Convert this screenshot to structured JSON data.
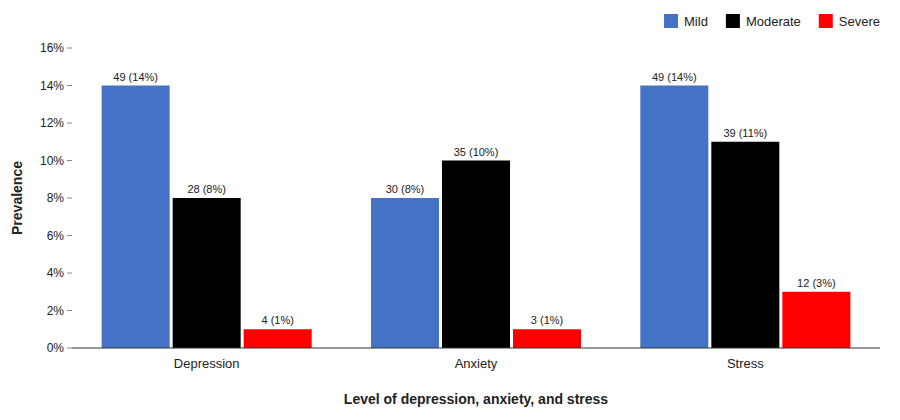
{
  "chart_data": {
    "type": "bar",
    "categories": [
      "Depression",
      "Anxiety",
      "Stress"
    ],
    "series": [
      {
        "name": "Mild",
        "color": "#4472C4",
        "values": [
          14,
          8,
          14
        ],
        "value_labels": [
          "49 (14%)",
          "30 (8%)",
          "49 (14%)"
        ]
      },
      {
        "name": "Moderate",
        "color": "#000000",
        "values": [
          8,
          10,
          11
        ],
        "value_labels": [
          "28 (8%)",
          "35 (10%)",
          "39 (11%)"
        ]
      },
      {
        "name": "Severe",
        "color": "#FF0000",
        "values": [
          1,
          1,
          3
        ],
        "value_labels": [
          "4 (1%)",
          "3 (1%)",
          "12 (3%)"
        ]
      }
    ],
    "x_label": "Level of depression, anxiety, and stress",
    "y_label": "Prevalence",
    "ylim": [
      0,
      16
    ],
    "yticks": [
      {
        "value": 0,
        "label": "0%"
      },
      {
        "value": 2,
        "label": "2%"
      },
      {
        "value": 4,
        "label": "4%"
      },
      {
        "value": 6,
        "label": "6%"
      },
      {
        "value": 8,
        "label": "8%"
      },
      {
        "value": 10,
        "label": "10%"
      },
      {
        "value": 12,
        "label": "12%"
      },
      {
        "value": 14,
        "label": "14%"
      },
      {
        "value": 16,
        "label": "16%"
      }
    ],
    "grid": false,
    "legend": "upper right",
    "data_labels": true
  }
}
